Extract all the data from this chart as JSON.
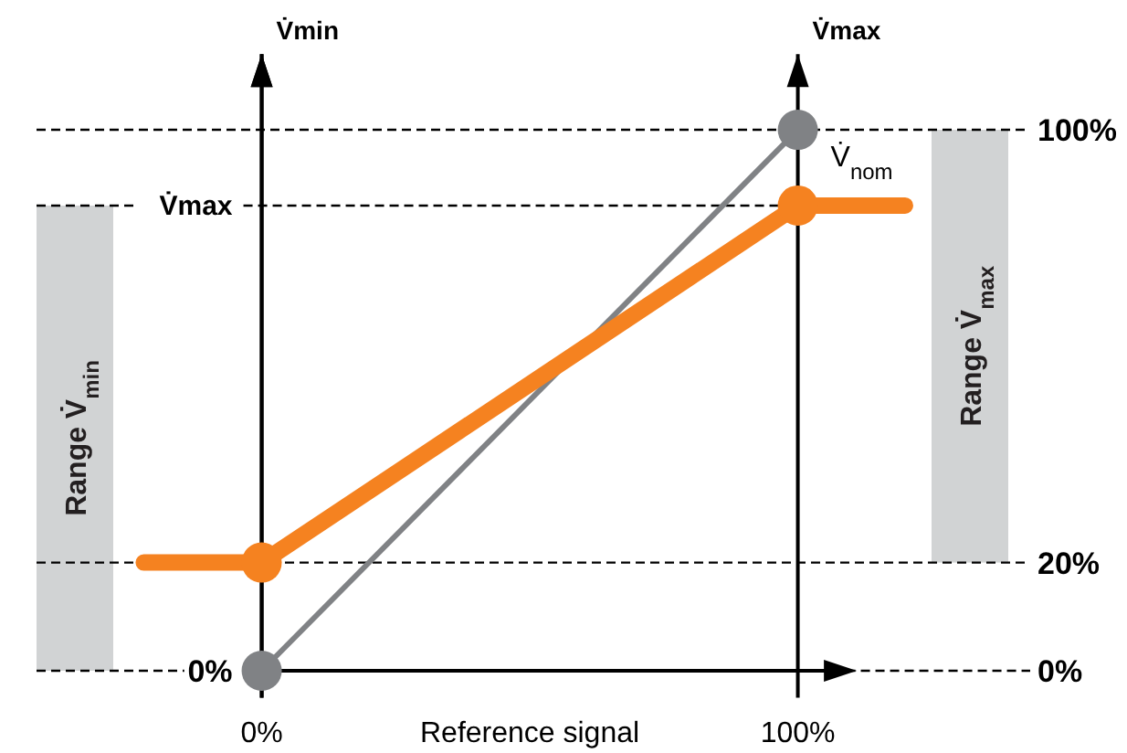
{
  "chart_data": {
    "type": "line",
    "xlabel": "Reference signal",
    "ylabel": "V̇min",
    "y2label": "V̇max",
    "xlim": [
      -42,
      143
    ],
    "xticks": [
      {
        "value": 0,
        "label": "0%"
      },
      {
        "value": 100,
        "label": "100%"
      }
    ],
    "ylim": [
      -5,
      114
    ],
    "yticks": [
      {
        "value": 0,
        "label": "0%"
      },
      {
        "value": 20,
        "label": "20%"
      },
      {
        "value": 100,
        "label": "100%"
      }
    ],
    "series": [
      {
        "color": "#808285",
        "x": [
          0,
          100
        ],
        "values": [
          0,
          100
        ],
        "marker": "circle"
      },
      {
        "color": "#f58220",
        "x": [
          -22,
          0,
          100,
          120
        ],
        "values": [
          20,
          20,
          86,
          86
        ]
      },
      {
        "type": "scatter",
        "color": "#f58220",
        "x": [
          0,
          100
        ],
        "values": [
          20,
          86
        ],
        "marker": "circle"
      }
    ],
    "grid": true,
    "ref_lines": [
      {
        "axis": "y",
        "value": 86,
        "label": "V̇max",
        "line_style": "dashed"
      }
    ],
    "bands": [
      {
        "axis": "y",
        "from": 0,
        "to": 86,
        "label": "Range V̇$_{min}$",
        "color": "#d1d3d4"
      },
      {
        "axis": "y",
        "from": 20,
        "to": 100,
        "label": "Range V̇$_{max}$",
        "color": "#d1d3d4"
      }
    ],
    "annotations": [
      {
        "text": "V̇$_{nom}$",
        "x": 100,
        "y": 100
      },
      {
        "text": "0%",
        "x": 0,
        "y": 0
      }
    ]
  }
}
